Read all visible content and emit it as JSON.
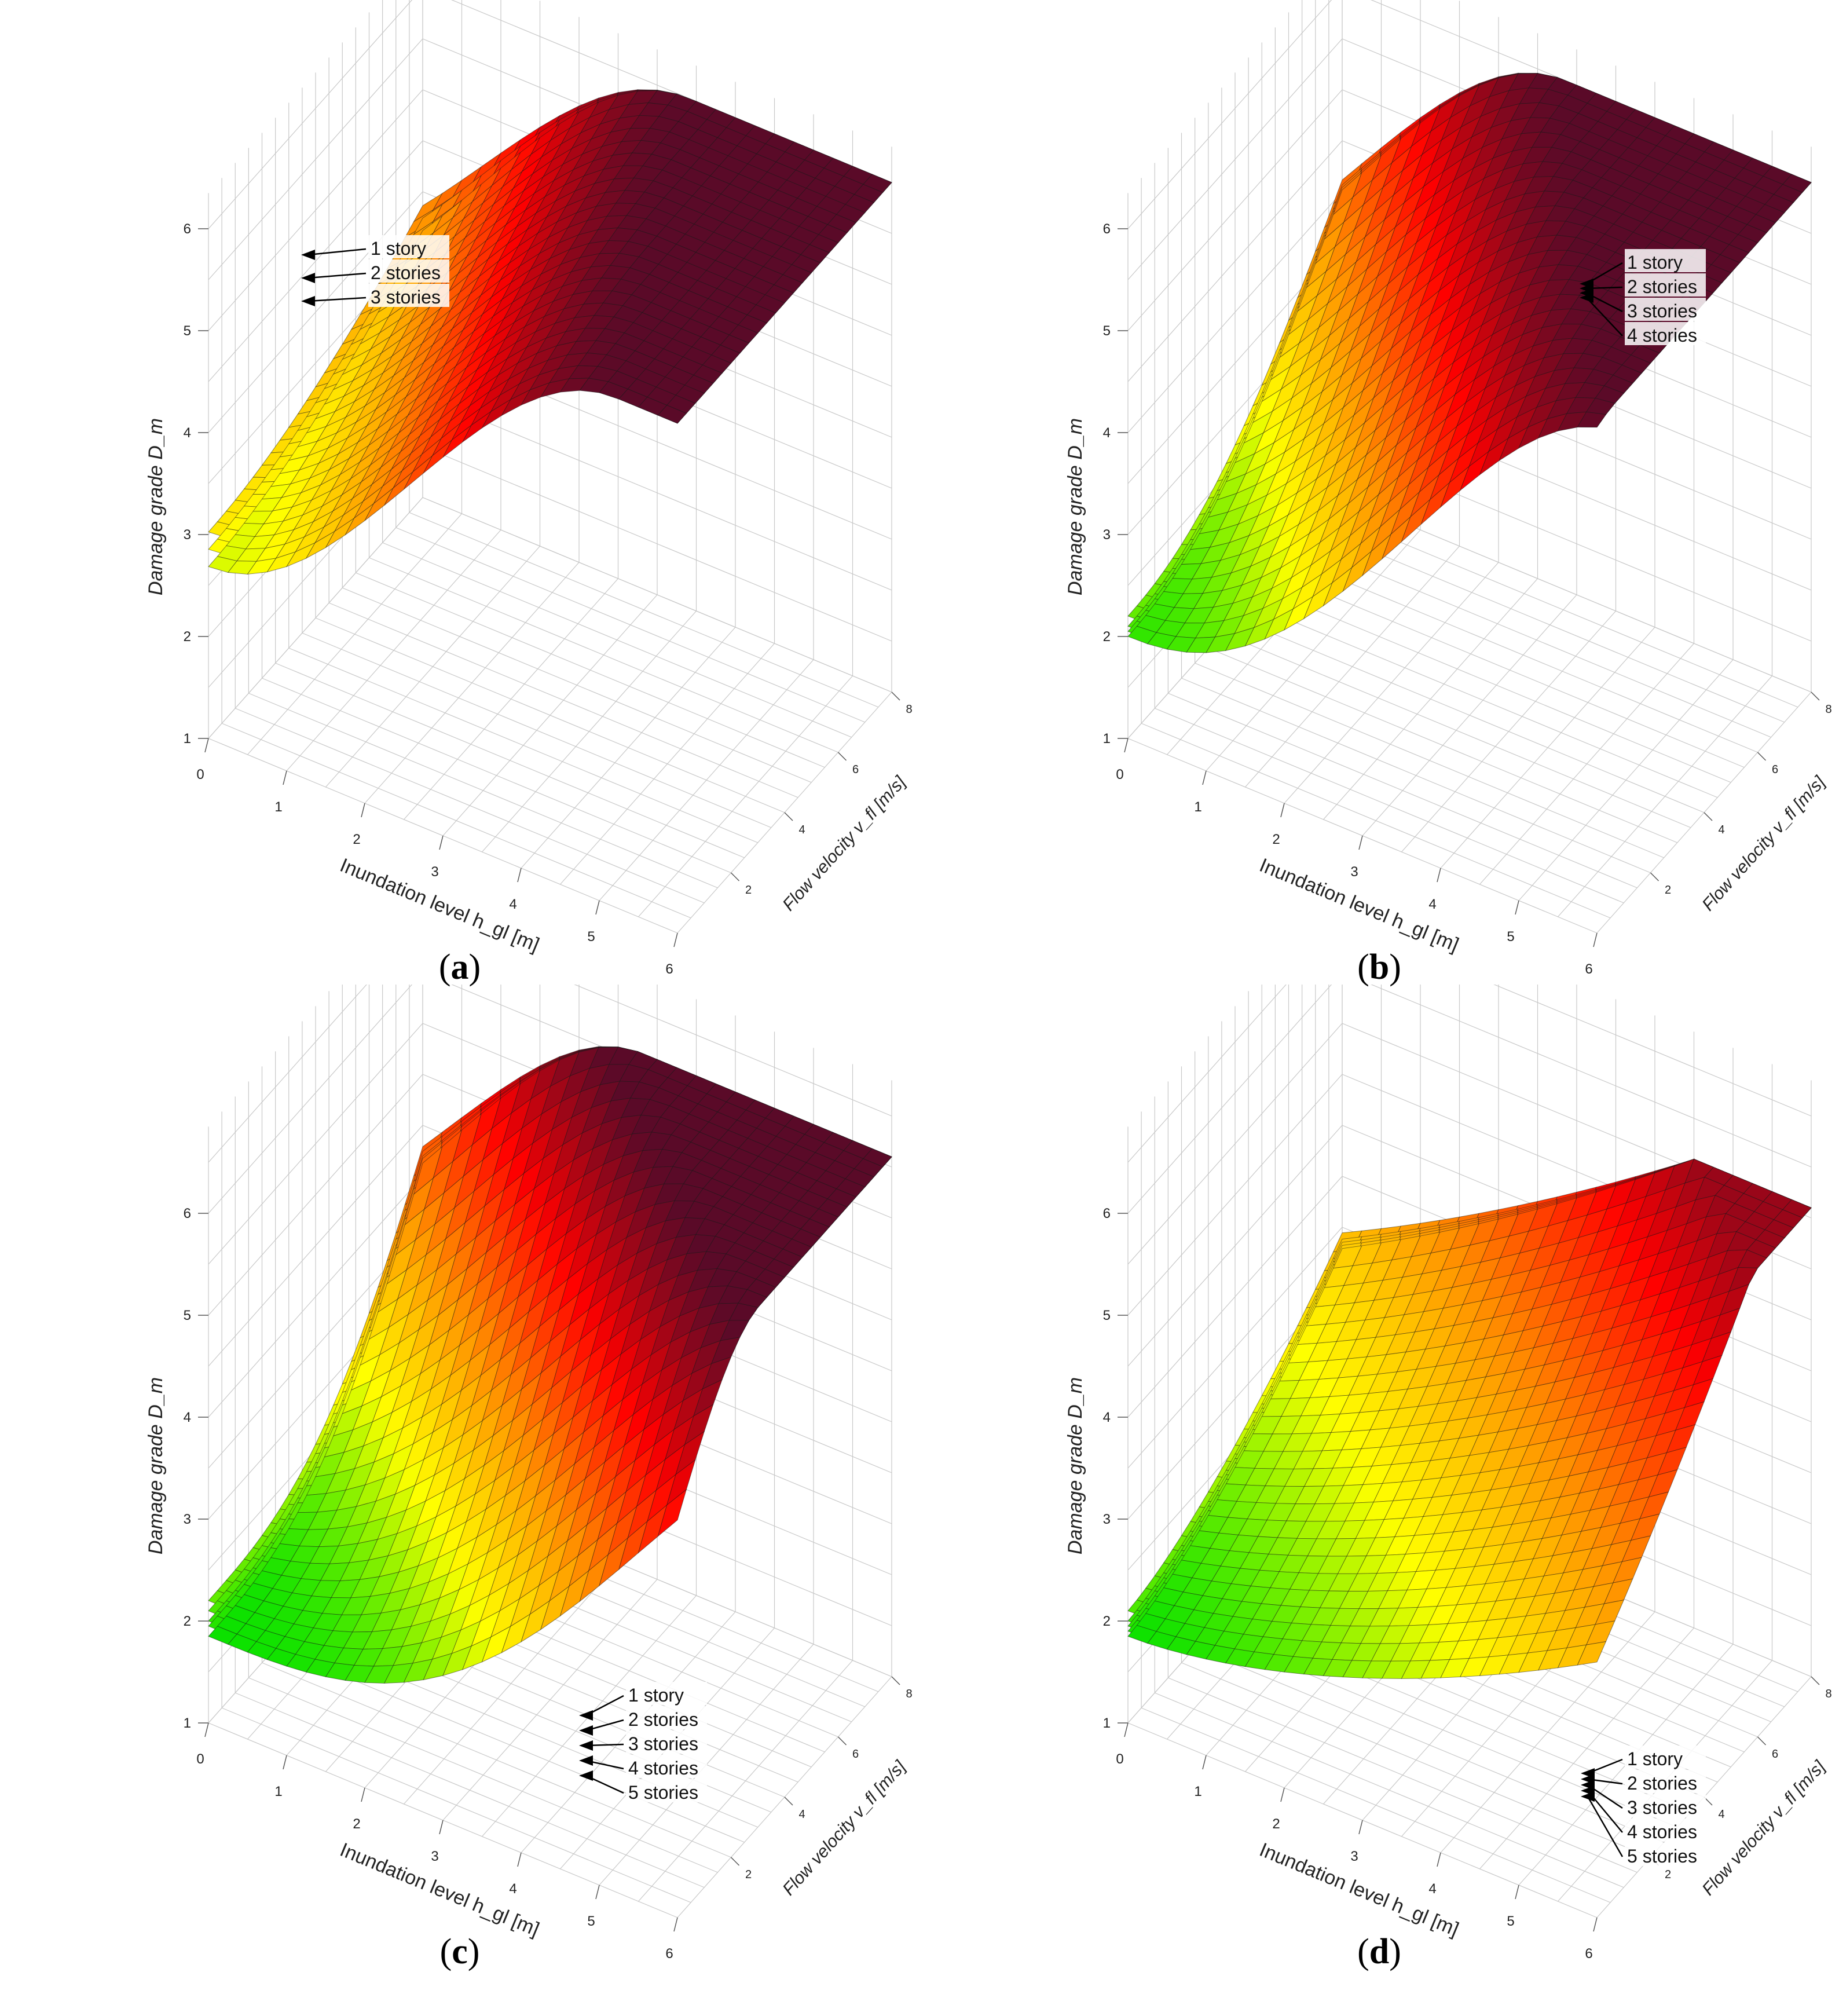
{
  "figure": {
    "panels": [
      {
        "caption_letter": "a"
      },
      {
        "caption_letter": "b"
      },
      {
        "caption_letter": "c"
      },
      {
        "caption_letter": "d"
      }
    ]
  },
  "chart_data": [
    {
      "type": "surface3d",
      "panel": "a",
      "zlabel": "Damage grade D_m",
      "xlabel": "Inundation level h_gl [m]",
      "ylabel": "Flow velocity v_fl [m/s]",
      "x_ticks": [
        "0",
        "1",
        "2",
        "3",
        "4",
        "5",
        "6"
      ],
      "y_ticks": [
        "2",
        "4",
        "6",
        "8"
      ],
      "z_ticks": [
        "1",
        "2",
        "3",
        "4",
        "5",
        "6"
      ],
      "xlim": [
        0,
        6
      ],
      "ylim": [
        0,
        8
      ],
      "zlim": [
        1,
        6
      ],
      "grid": true,
      "series": [
        {
          "name": "1 story",
          "z_min": 2.5,
          "z_max": 6.0
        },
        {
          "name": "2 stories",
          "z_min": 2.3,
          "z_max": 6.0
        },
        {
          "name": "3 stories",
          "z_min": 2.1,
          "z_max": 6.0
        }
      ],
      "colormap": [
        "#00e000",
        "#ffff00",
        "#ff8c00",
        "#ff0000",
        "#5a0a28"
      ]
    },
    {
      "type": "surface3d",
      "panel": "b",
      "zlabel": "Damage grade D_m",
      "xlabel": "Inundation level h_gl [m]",
      "ylabel": "Flow velocity v_fl [m/s]",
      "x_ticks": [
        "0",
        "1",
        "2",
        "3",
        "4",
        "5",
        "6"
      ],
      "y_ticks": [
        "2",
        "4",
        "6",
        "8"
      ],
      "z_ticks": [
        "1",
        "2",
        "3",
        "4",
        "5",
        "6"
      ],
      "xlim": [
        0,
        6
      ],
      "ylim": [
        0,
        8
      ],
      "zlim": [
        1,
        6
      ],
      "grid": true,
      "series": [
        {
          "name": "1 story",
          "z_min": 2.2,
          "z_max": 6.0
        },
        {
          "name": "2 stories",
          "z_min": 2.1,
          "z_max": 6.0
        },
        {
          "name": "3 stories",
          "z_min": 2.05,
          "z_max": 6.0
        },
        {
          "name": "4 stories",
          "z_min": 2.0,
          "z_max": 6.0
        }
      ],
      "colormap": [
        "#00e000",
        "#ffff00",
        "#ff8c00",
        "#ff0000",
        "#5a0a28"
      ]
    },
    {
      "type": "surface3d",
      "panel": "c",
      "zlabel": "Damage grade D_m",
      "xlabel": "Inundation level h_gl [m]",
      "ylabel": "Flow velocity v_fl [m/s]",
      "x_ticks": [
        "0",
        "1",
        "2",
        "3",
        "4",
        "5",
        "6"
      ],
      "y_ticks": [
        "2",
        "4",
        "6",
        "8"
      ],
      "z_ticks": [
        "1",
        "2",
        "3",
        "4",
        "5",
        "6"
      ],
      "xlim": [
        0,
        6
      ],
      "ylim": [
        0,
        8
      ],
      "zlim": [
        1,
        6.5
      ],
      "grid": true,
      "series": [
        {
          "name": "1 story",
          "z_min": 2.2,
          "z_max": 6.1
        },
        {
          "name": "2 stories",
          "z_min": 2.1,
          "z_max": 6.1
        },
        {
          "name": "3 stories",
          "z_min": 2.0,
          "z_max": 6.1
        },
        {
          "name": "4 stories",
          "z_min": 1.95,
          "z_max": 6.1
        },
        {
          "name": "5 stories",
          "z_min": 1.85,
          "z_max": 6.1
        }
      ],
      "colormap": [
        "#00e000",
        "#ffff00",
        "#ff8c00",
        "#ff0000",
        "#5a0a28"
      ]
    },
    {
      "type": "surface3d",
      "panel": "d",
      "zlabel": "Damage grade D_m",
      "xlabel": "Inundation level h_gl [m]",
      "ylabel": "Flow velocity v_fl [m/s]",
      "x_ticks": [
        "0",
        "1",
        "2",
        "3",
        "4",
        "5",
        "6"
      ],
      "y_ticks": [
        "2",
        "4",
        "6",
        "8"
      ],
      "z_ticks": [
        "1",
        "2",
        "3",
        "4",
        "5",
        "6"
      ],
      "xlim": [
        0,
        6
      ],
      "ylim": [
        0,
        8
      ],
      "zlim": [
        1,
        6.5
      ],
      "grid": true,
      "series": [
        {
          "name": "1 story",
          "z_min": 2.1,
          "z_max": 5.6
        },
        {
          "name": "2 stories",
          "z_min": 2.0,
          "z_max": 5.6
        },
        {
          "name": "3 stories",
          "z_min": 1.95,
          "z_max": 5.6
        },
        {
          "name": "4 stories",
          "z_min": 1.9,
          "z_max": 5.6
        },
        {
          "name": "5 stories",
          "z_min": 1.85,
          "z_max": 5.6
        }
      ],
      "colormap": [
        "#00e000",
        "#ffff00",
        "#ff8c00",
        "#ff0000",
        "#5a0a28"
      ]
    }
  ]
}
